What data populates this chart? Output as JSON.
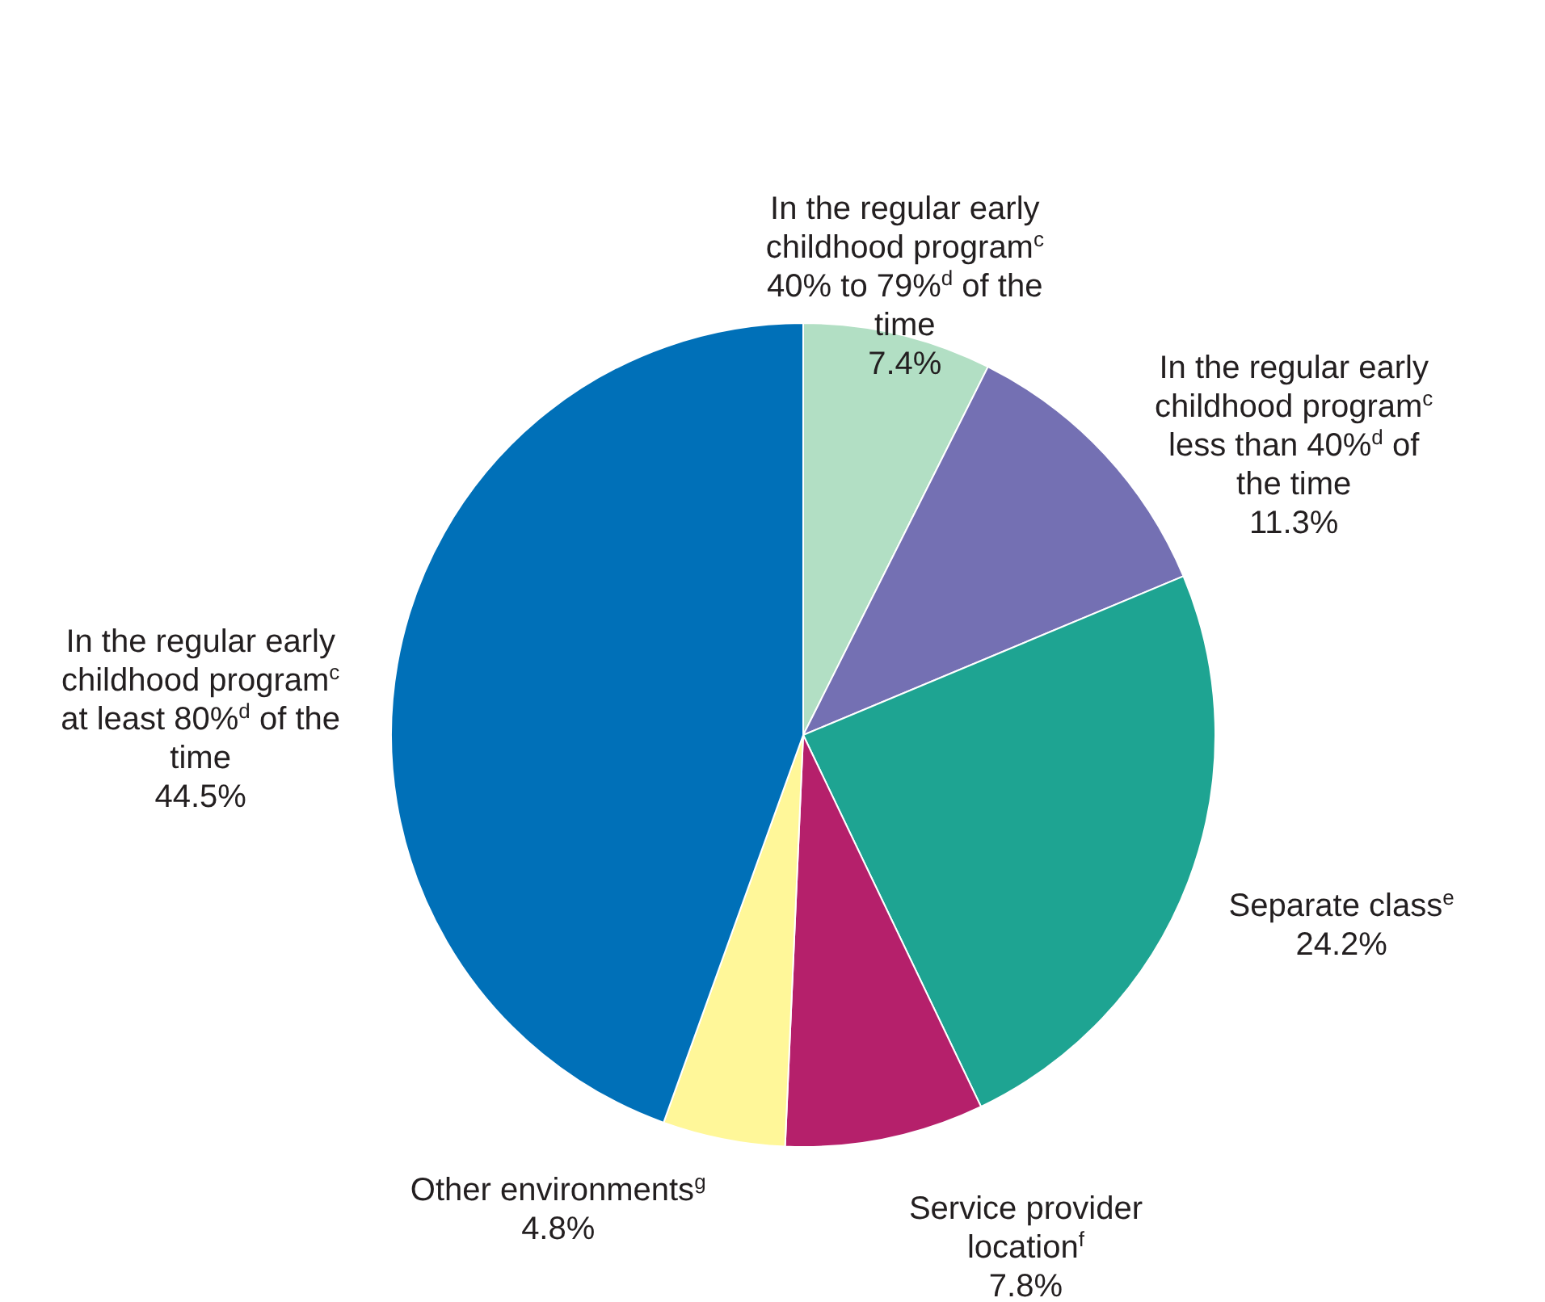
{
  "chart_data": {
    "type": "pie",
    "categories": [
      "In the regular early childhood program$^{c}$ 40% to 79%$^{d}$ of the time",
      "In the regular early childhood program$^{c}$ less than 40%$^{d}$ of the time",
      "Separate class$^{e}$",
      "Service provider location$^{f}$",
      "Other environments$^{g}$",
      "In the regular early childhood program$^{c}$ at least 80%$^{d}$ of the time"
    ],
    "values": [
      7.4,
      11.3,
      24.2,
      7.8,
      4.8,
      44.5
    ],
    "colors": [
      "#b2dfc4",
      "#7470b3",
      "#1ea492",
      "#b5206b",
      "#fff799",
      "#0070b8"
    ],
    "value_labels": [
      "7.4%",
      "11.3%",
      "24.2%",
      "7.8%",
      "4.8%",
      "44.5%"
    ]
  }
}
